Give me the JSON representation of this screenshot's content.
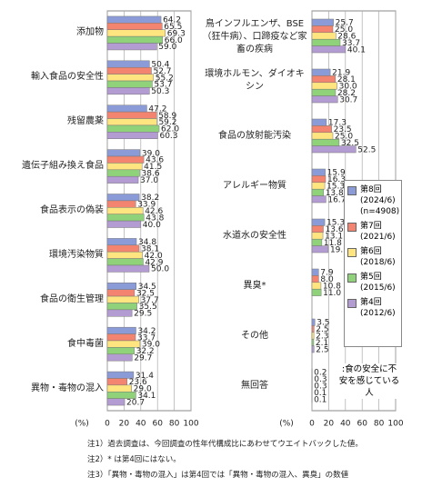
{
  "chart_data": [
    {
      "type": "bar",
      "orientation": "horizontal",
      "categories": [
        "添加物",
        "輸入食品の安全性",
        "残留農薬",
        "遺伝子組み換え食品",
        "食品表示の偽装",
        "環境汚染物質",
        "食品の衛生管理",
        "食中毒菌",
        "異物・毒物の混入"
      ],
      "series": [
        {
          "color": "#8b9bd8",
          "values": [
            64.2,
            50.4,
            47.2,
            39.0,
            38.2,
            34.8,
            34.5,
            34.2,
            31.4
          ],
          "value_labels": [
            "64.2",
            "50.4",
            "47.2",
            "39.0",
            "38.2",
            "34.8",
            "34.5",
            "34.2",
            "31.4"
          ]
        },
        {
          "color": "#f3846f",
          "values": [
            65.5,
            52.7,
            58.9,
            43.6,
            33.9,
            38.1,
            32.5,
            33.7,
            23.6
          ],
          "value_labels": [
            "65.5",
            "52.7",
            "58.9",
            "43.6",
            "33.9",
            "38.1",
            "32.5",
            "33.7",
            "23.6"
          ]
        },
        {
          "color": "#ffe57f",
          "values": [
            69.3,
            55.2,
            59.2,
            41.5,
            42.6,
            42.0,
            37.7,
            39.0,
            29.0
          ],
          "value_labels": [
            "69.3",
            "55.2",
            "59.2",
            "41.5",
            "42.6",
            "42.0",
            "37.7",
            "39.0",
            "29.0"
          ]
        },
        {
          "color": "#8fd27a",
          "values": [
            66.0,
            53.7,
            62.0,
            38.6,
            43.8,
            42.9,
            35.5,
            32.2,
            34.1
          ],
          "value_labels": [
            "66.0",
            "53.7",
            "62.0",
            "38.6",
            "43.8",
            "42.9",
            "35.5",
            "32.2",
            "34.1"
          ]
        },
        {
          "color": "#b39cd2",
          "values": [
            59.0,
            50.3,
            60.3,
            37.0,
            40.0,
            50.0,
            29.5,
            29.7,
            20.7
          ],
          "value_labels": [
            "59.0",
            "50.3",
            "60.3",
            "37.0",
            "40.0",
            "50.0",
            "29.5",
            "29.7",
            "20.7"
          ]
        }
      ],
      "xlim": [
        0,
        100
      ],
      "xticks": [
        0,
        20,
        40,
        60,
        80,
        100
      ],
      "xlabel": "(%)",
      "grid": true
    },
    {
      "type": "bar",
      "orientation": "horizontal",
      "categories": [
        "鳥インフルエンザ、BSE（狂牛病）、口蹄疫など家畜の疾病",
        "環境ホルモン、ダイオキシン",
        "食品の放射能汚染",
        "アレルギー物質",
        "水道水の安全性",
        "異臭*",
        "その他",
        "無回答"
      ],
      "series": [
        {
          "name": "第8回",
          "period": "(2024/6)",
          "n": "(n=4908)",
          "color": "#8b9bd8",
          "values": [
            25.7,
            21.9,
            17.3,
            15.9,
            15.3,
            7.9,
            3.5,
            0.2
          ],
          "value_labels": [
            "25.7",
            "21.9",
            "17.3",
            "15.9",
            "15.3",
            "7.9",
            "3.5",
            "0.2"
          ]
        },
        {
          "name": "第7回",
          "period": "(2021/6)",
          "color": "#f3846f",
          "values": [
            25.0,
            28.1,
            23.5,
            16.3,
            13.6,
            8.0,
            2.5,
            0.3
          ],
          "value_labels": [
            "25.0",
            "28.1",
            "23.5",
            "16.3",
            "13.6",
            "8.0",
            "2.5",
            "0.3"
          ]
        },
        {
          "name": "第6回",
          "period": "(2018/6)",
          "color": "#ffe57f",
          "values": [
            28.6,
            30.0,
            25.0,
            15.3,
            13.1,
            10.8,
            2.3,
            0.3
          ],
          "value_labels": [
            "28.6",
            "30.0",
            "25.0",
            "15.3",
            "13.1",
            "10.8",
            "2.3",
            "0.3"
          ]
        },
        {
          "name": "第5回",
          "period": "(2015/6)",
          "color": "#8fd27a",
          "values": [
            33.7,
            28.2,
            32.5,
            13.8,
            11.8,
            11.0,
            2.1,
            0.1
          ],
          "value_labels": [
            "33.7",
            "28.2",
            "32.5",
            "13.8",
            "11.8",
            "11.0",
            "2.1",
            "0.1"
          ]
        },
        {
          "name": "第4回",
          "period": "(2012/6)",
          "color": "#b39cd2",
          "values": [
            40.1,
            30.7,
            52.5,
            16.7,
            19.5,
            null,
            2.5,
            0.1
          ],
          "value_labels": [
            "40.1",
            "30.7",
            "52.5",
            "16.7",
            "19.5",
            null,
            "2.5",
            "0.1"
          ]
        }
      ],
      "xlim": [
        0,
        100
      ],
      "xticks": [
        0,
        20,
        40,
        60,
        80,
        100
      ],
      "xlabel": "(%)",
      "grid": true,
      "annotation": ":食の安全に不安を感じている人"
    }
  ],
  "notes": [
    "注1）過去調査は、今回調査の性年代構成比にあわせてウエイトバックした値。",
    "注2）* は第4回にはない。",
    "注3）「異物・毒物の混入」は第4回では「異物・毒物の混入、異臭」の数値"
  ]
}
